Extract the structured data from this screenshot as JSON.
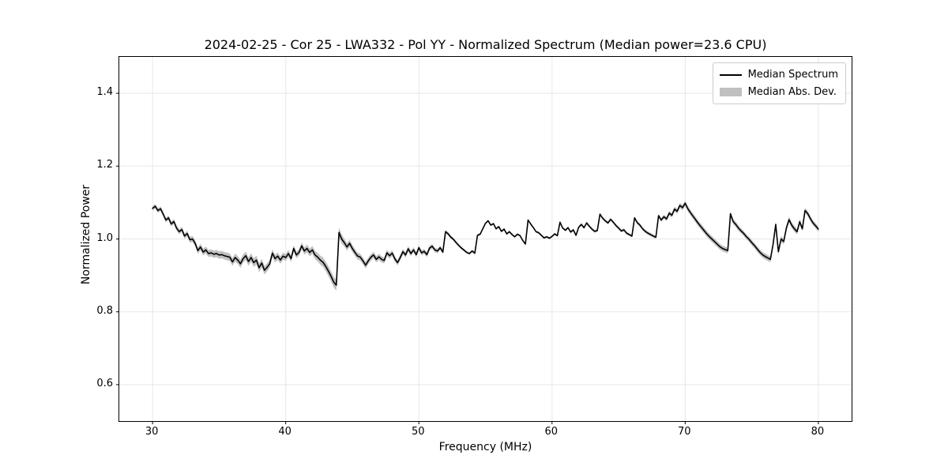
{
  "chart_data": {
    "type": "line",
    "title": "2024-02-25 - Cor 25 - LWA332 - Pol YY - Normalized Spectrum (Median power=23.6 CPU)",
    "xlabel": "Frequency (MHz)",
    "ylabel": "Normalized Power",
    "xlim": [
      27.5,
      82.5
    ],
    "ylim": [
      0.5,
      1.5
    ],
    "xticks": [
      30,
      40,
      50,
      60,
      70,
      80
    ],
    "yticks": [
      0.6,
      0.8,
      1.0,
      1.2,
      1.4
    ],
    "grid": true,
    "legend_position": "upper right",
    "colors": {
      "line": "#000000",
      "band": "#c0c0c0",
      "grid": "#e7e7e7",
      "spine": "#000000",
      "legend_edge": "#cccccc"
    },
    "x_start": 30.0,
    "x_step": 0.2,
    "series": [
      {
        "name": "Median Spectrum",
        "style": "line",
        "color": "#000000",
        "values": [
          1.084,
          1.09,
          1.078,
          1.083,
          1.068,
          1.052,
          1.058,
          1.041,
          1.048,
          1.03,
          1.02,
          1.026,
          1.008,
          1.015,
          0.998,
          1.0,
          0.988,
          0.968,
          0.978,
          0.964,
          0.97,
          0.96,
          0.962,
          0.958,
          0.96,
          0.956,
          0.957,
          0.954,
          0.952,
          0.95,
          0.937,
          0.949,
          0.942,
          0.932,
          0.946,
          0.954,
          0.938,
          0.949,
          0.935,
          0.942,
          0.921,
          0.934,
          0.914,
          0.922,
          0.932,
          0.961,
          0.946,
          0.953,
          0.942,
          0.953,
          0.949,
          0.96,
          0.946,
          0.974,
          0.956,
          0.963,
          0.981,
          0.967,
          0.974,
          0.963,
          0.97,
          0.956,
          0.95,
          0.942,
          0.936,
          0.925,
          0.912,
          0.898,
          0.882,
          0.873,
          1.018,
          1.0,
          0.99,
          0.978,
          0.988,
          0.974,
          0.963,
          0.953,
          0.95,
          0.94,
          0.928,
          0.94,
          0.95,
          0.956,
          0.944,
          0.951,
          0.944,
          0.941,
          0.962,
          0.954,
          0.961,
          0.945,
          0.935,
          0.949,
          0.965,
          0.956,
          0.973,
          0.96,
          0.97,
          0.957,
          0.976,
          0.962,
          0.966,
          0.957,
          0.975,
          0.98,
          0.97,
          0.967,
          0.976,
          0.964,
          1.02,
          1.014,
          1.005,
          0.999,
          0.99,
          0.982,
          0.975,
          0.969,
          0.963,
          0.96,
          0.967,
          0.961,
          1.01,
          1.013,
          1.028,
          1.043,
          1.05,
          1.038,
          1.042,
          1.028,
          1.034,
          1.021,
          1.027,
          1.014,
          1.02,
          1.012,
          1.006,
          1.013,
          1.009,
          0.996,
          0.986,
          1.052,
          1.041,
          1.031,
          1.02,
          1.017,
          1.01,
          1.003,
          1.006,
          1.002,
          1.007,
          1.014,
          1.009,
          1.046,
          1.03,
          1.024,
          1.031,
          1.019,
          1.025,
          1.01,
          1.032,
          1.04,
          1.031,
          1.044,
          1.035,
          1.027,
          1.021,
          1.023,
          1.068,
          1.057,
          1.05,
          1.044,
          1.054,
          1.046,
          1.037,
          1.03,
          1.022,
          1.025,
          1.016,
          1.012,
          1.008,
          1.058,
          1.045,
          1.038,
          1.028,
          1.021,
          1.016,
          1.012,
          1.008,
          1.005,
          1.064,
          1.052,
          1.061,
          1.055,
          1.071,
          1.065,
          1.082,
          1.076,
          1.092,
          1.086,
          1.098,
          1.083,
          1.072,
          1.062,
          1.052,
          1.042,
          1.033,
          1.024,
          1.015,
          1.007,
          1.0,
          0.993,
          0.986,
          0.979,
          0.974,
          0.971,
          0.968,
          1.069,
          1.048,
          1.04,
          1.03,
          1.022,
          1.015,
          1.006,
          0.999,
          0.99,
          0.982,
          0.973,
          0.964,
          0.957,
          0.952,
          0.948,
          0.944,
          0.985,
          1.04,
          0.965,
          1.0,
          0.993,
          1.03,
          1.053,
          1.038,
          1.028,
          1.02,
          1.047,
          1.028,
          1.078,
          1.07,
          1.056,
          1.044,
          1.036,
          1.027
        ]
      },
      {
        "name": "Median Abs. Dev.",
        "style": "band",
        "color": "#c0c0c0",
        "halfwidth_anchors": [
          [
            30.0,
            0.006
          ],
          [
            32.0,
            0.007
          ],
          [
            33.5,
            0.009
          ],
          [
            35.0,
            0.01
          ],
          [
            36.5,
            0.011
          ],
          [
            38.0,
            0.012
          ],
          [
            39.5,
            0.01
          ],
          [
            41.0,
            0.009
          ],
          [
            42.5,
            0.012
          ],
          [
            43.8,
            0.015
          ],
          [
            44.5,
            0.01
          ],
          [
            46.0,
            0.009
          ],
          [
            48.0,
            0.008
          ],
          [
            50.0,
            0.007
          ],
          [
            51.5,
            0.006
          ],
          [
            53.0,
            0.004
          ],
          [
            55.0,
            0.003
          ],
          [
            58.0,
            0.003
          ],
          [
            60.0,
            0.003
          ],
          [
            63.0,
            0.004
          ],
          [
            66.0,
            0.004
          ],
          [
            68.0,
            0.005
          ],
          [
            69.5,
            0.007
          ],
          [
            71.0,
            0.008
          ],
          [
            73.0,
            0.008
          ],
          [
            74.5,
            0.007
          ],
          [
            76.0,
            0.008
          ],
          [
            78.0,
            0.008
          ],
          [
            80.0,
            0.007
          ]
        ]
      }
    ]
  }
}
